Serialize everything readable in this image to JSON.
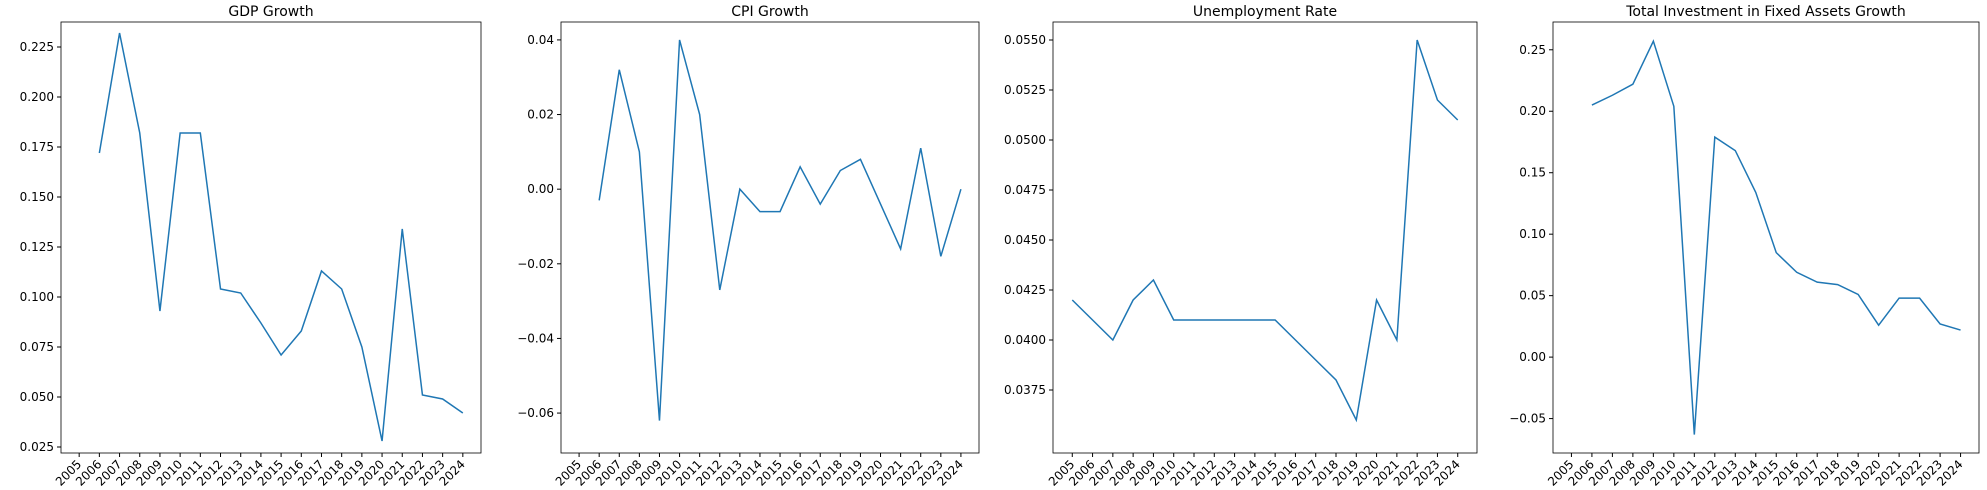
{
  "chart_data": [
    {
      "type": "line",
      "title": "GDP Growth",
      "x": [
        2006,
        2007,
        2008,
        2009,
        2010,
        2011,
        2012,
        2013,
        2014,
        2015,
        2016,
        2017,
        2018,
        2019,
        2020,
        2021,
        2022,
        2023,
        2024
      ],
      "series": [
        {
          "color": "#1f77b4",
          "values": [
            0.172,
            0.232,
            0.182,
            0.093,
            0.182,
            0.182,
            0.104,
            0.102,
            0.087,
            0.071,
            0.083,
            0.113,
            0.104,
            0.075,
            0.028,
            0.134,
            0.051,
            0.049,
            0.042
          ]
        }
      ],
      "xlim": [
        2004.1,
        2024.9
      ],
      "xticks": [
        2005,
        2006,
        2007,
        2008,
        2009,
        2010,
        2011,
        2012,
        2013,
        2014,
        2015,
        2016,
        2017,
        2018,
        2019,
        2020,
        2021,
        2022,
        2023,
        2024
      ],
      "ylim": [
        0.022,
        0.2375
      ],
      "yticks": [
        0.025,
        {
          "value": 0.05,
          "label": "0.050"
        },
        0.075,
        {
          "value": 0.1,
          "label": "0.100"
        },
        0.125,
        {
          "value": 0.15,
          "label": "0.150"
        },
        0.175,
        {
          "value": 0.2,
          "label": "0.200"
        },
        0.225
      ]
    },
    {
      "type": "line",
      "title": "CPI Growth",
      "x": [
        2006,
        2007,
        2008,
        2009,
        2010,
        2011,
        2012,
        2013,
        2014,
        2015,
        2016,
        2017,
        2018,
        2019,
        2020,
        2021,
        2022,
        2023,
        2024
      ],
      "series": [
        {
          "color": "#1f77b4",
          "values": [
            -0.003,
            0.032,
            0.01,
            -0.062,
            0.04,
            0.02,
            -0.027,
            0.0,
            -0.006,
            -0.006,
            0.006,
            -0.004,
            0.005,
            0.008,
            -0.004,
            -0.016,
            0.011,
            -0.018,
            0.0
          ]
        }
      ],
      "xlim": [
        2004.1,
        2024.9
      ],
      "xticks": [
        2005,
        2006,
        2007,
        2008,
        2009,
        2010,
        2011,
        2012,
        2013,
        2014,
        2015,
        2016,
        2017,
        2018,
        2019,
        2020,
        2021,
        2022,
        2023,
        2024
      ],
      "ylim": [
        -0.0707,
        0.0448
      ],
      "yticks": [
        {
          "value": -0.06,
          "label": "−0.06"
        },
        {
          "value": -0.04,
          "label": "−0.04"
        },
        {
          "value": -0.02,
          "label": "−0.02"
        },
        {
          "value": 0,
          "label": "0.00"
        },
        0.02,
        0.04
      ]
    },
    {
      "type": "line",
      "title": "Unemployment Rate",
      "x": [
        2005,
        2006,
        2007,
        2008,
        2009,
        2010,
        2011,
        2012,
        2013,
        2014,
        2015,
        2016,
        2017,
        2018,
        2019,
        2020,
        2021,
        2022,
        2023,
        2024
      ],
      "series": [
        {
          "color": "#1f77b4",
          "values": [
            0.042,
            0.041,
            0.04,
            0.042,
            0.043,
            0.041,
            0.041,
            0.041,
            0.041,
            0.041,
            0.041,
            0.04,
            0.039,
            0.038,
            0.036,
            0.042,
            0.04,
            0.055,
            0.052,
            0.051
          ]
        }
      ],
      "xlim": [
        2004.05,
        2024.95
      ],
      "xticks": [
        2005,
        2006,
        2007,
        2008,
        2009,
        2010,
        2011,
        2012,
        2013,
        2014,
        2015,
        2016,
        2017,
        2018,
        2019,
        2020,
        2021,
        2022,
        2023,
        2024
      ],
      "ylim": [
        0.03435,
        0.0559
      ],
      "yticks": [
        0.0375,
        {
          "value": 0.04,
          "label": "0.0400"
        },
        0.0425,
        {
          "value": 0.045,
          "label": "0.0450"
        },
        0.0475,
        {
          "value": 0.05,
          "label": "0.0500"
        },
        0.0525,
        {
          "value": 0.055,
          "label": "0.0550"
        }
      ]
    },
    {
      "type": "line",
      "title": "Total Investment in Fixed Assets Growth",
      "x": [
        2006,
        2007,
        2008,
        2009,
        2010,
        2011,
        2012,
        2013,
        2014,
        2015,
        2016,
        2017,
        2018,
        2019,
        2020,
        2021,
        2022,
        2023,
        2024
      ],
      "series": [
        {
          "color": "#1f77b4",
          "values": [
            0.205,
            0.213,
            0.222,
            0.257,
            0.204,
            -0.063,
            0.179,
            0.168,
            0.134,
            0.085,
            0.069,
            0.061,
            0.059,
            0.051,
            0.026,
            0.048,
            0.048,
            0.027,
            0.022
          ]
        }
      ],
      "xlim": [
        2004.1,
        2024.9
      ],
      "xticks": [
        2005,
        2006,
        2007,
        2008,
        2009,
        2010,
        2011,
        2012,
        2013,
        2014,
        2015,
        2016,
        2017,
        2018,
        2019,
        2020,
        2021,
        2022,
        2023,
        2024
      ],
      "ylim": [
        -0.078,
        0.2726
      ],
      "yticks": [
        {
          "value": -0.05,
          "label": "−0.05"
        },
        {
          "value": 0,
          "label": "0.00"
        },
        0.05,
        {
          "value": 0.1,
          "label": "0.10"
        },
        0.15,
        {
          "value": 0.2,
          "label": "0.20"
        },
        0.25
      ]
    }
  ]
}
